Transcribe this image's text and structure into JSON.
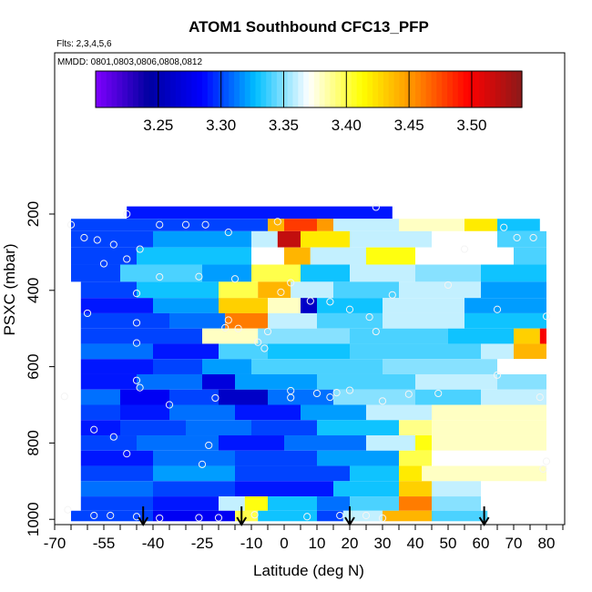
{
  "chart_data": {
    "type": "heatmap",
    "title": "ATOM1 Southbound CFC13_PFP",
    "subtitle_lines": [
      "Flts: 2,3,4,5,6",
      "MMDD: 0801,0803,0806,0808,0812"
    ],
    "xlabel": "Latitude (deg N)",
    "ylabel": "PSXC (mbar)",
    "xlim": [
      -70,
      85
    ],
    "ylim": [
      1010,
      0
    ],
    "x_ticks": [
      -70,
      -55,
      -40,
      -25,
      -10,
      0,
      10,
      20,
      30,
      40,
      50,
      60,
      70,
      80
    ],
    "y_ticks": [
      200,
      400,
      600,
      800,
      1000
    ],
    "colorbar": {
      "min": 3.2,
      "max": 3.54,
      "ticks": [
        3.25,
        3.3,
        3.35,
        3.4,
        3.45,
        3.5
      ],
      "tick_labels": [
        "3.25",
        "3.30",
        "3.35",
        "3.40",
        "3.45",
        "3.50"
      ],
      "colors": [
        "#7F00FF",
        "#0000A0",
        "#0000FF",
        "#00BFFF",
        "#FFFFFF",
        "#FFFF00",
        "#FF8C00",
        "#FF0000",
        "#8B1A1A"
      ]
    },
    "rows": [
      {
        "pressure": 200,
        "segments": [
          [
            -48,
            33,
            3.29
          ]
        ]
      },
      {
        "pressure": 225,
        "segments": [
          [
            -65,
            -5,
            3.3
          ],
          [
            -5,
            0,
            3.44
          ],
          [
            0,
            10,
            3.48
          ],
          [
            10,
            15,
            3.45
          ],
          [
            15,
            35,
            3.36
          ],
          [
            35,
            55,
            3.38
          ],
          [
            55,
            65,
            3.42
          ],
          [
            65,
            78,
            3.33
          ]
        ]
      },
      {
        "pressure": 265,
        "segments": [
          [
            -65,
            -40,
            3.3
          ],
          [
            -40,
            -10,
            3.32
          ],
          [
            -10,
            -2,
            3.36
          ],
          [
            -2,
            5,
            3.52
          ],
          [
            5,
            20,
            3.42
          ],
          [
            20,
            45,
            3.36
          ],
          [
            45,
            65,
            3.37
          ],
          [
            65,
            80,
            3.34
          ]
        ]
      },
      {
        "pressure": 310,
        "segments": [
          [
            -65,
            -45,
            3.3
          ],
          [
            -45,
            -10,
            3.33
          ],
          [
            -10,
            0,
            3.37
          ],
          [
            0,
            8,
            3.44
          ],
          [
            8,
            25,
            3.36
          ],
          [
            25,
            40,
            3.41
          ],
          [
            40,
            70,
            3.37
          ],
          [
            70,
            80,
            3.34
          ]
        ]
      },
      {
        "pressure": 355,
        "segments": [
          [
            -65,
            -50,
            3.3
          ],
          [
            -50,
            -25,
            3.34
          ],
          [
            -25,
            -10,
            3.32
          ],
          [
            -10,
            5,
            3.4
          ],
          [
            5,
            20,
            3.33
          ],
          [
            20,
            40,
            3.36
          ],
          [
            40,
            60,
            3.35
          ],
          [
            60,
            80,
            3.33
          ]
        ]
      },
      {
        "pressure": 400,
        "segments": [
          [
            -62,
            -45,
            3.3
          ],
          [
            -45,
            -20,
            3.33
          ],
          [
            -20,
            -8,
            3.4
          ],
          [
            -8,
            2,
            3.44
          ],
          [
            2,
            15,
            3.36
          ],
          [
            15,
            35,
            3.34
          ],
          [
            35,
            60,
            3.36
          ],
          [
            60,
            80,
            3.32
          ]
        ]
      },
      {
        "pressure": 440,
        "segments": [
          [
            -62,
            -40,
            3.29
          ],
          [
            -40,
            -20,
            3.32
          ],
          [
            -20,
            -5,
            3.43
          ],
          [
            -5,
            5,
            3.38
          ],
          [
            5,
            10,
            3.26
          ],
          [
            10,
            30,
            3.33
          ],
          [
            30,
            55,
            3.36
          ],
          [
            55,
            80,
            3.32
          ]
        ]
      },
      {
        "pressure": 480,
        "segments": [
          [
            -62,
            -35,
            3.3
          ],
          [
            -35,
            -18,
            3.31
          ],
          [
            -18,
            -5,
            3.46
          ],
          [
            -5,
            10,
            3.36
          ],
          [
            10,
            30,
            3.34
          ],
          [
            30,
            55,
            3.36
          ],
          [
            55,
            80,
            3.33
          ]
        ]
      },
      {
        "pressure": 520,
        "segments": [
          [
            -62,
            -25,
            3.3
          ],
          [
            -25,
            -8,
            3.38
          ],
          [
            -8,
            20,
            3.35
          ],
          [
            20,
            50,
            3.34
          ],
          [
            50,
            70,
            3.33
          ],
          [
            70,
            78,
            3.43
          ],
          [
            78,
            80,
            3.5
          ]
        ]
      },
      {
        "pressure": 560,
        "segments": [
          [
            -62,
            -40,
            3.31
          ],
          [
            -40,
            -20,
            3.29
          ],
          [
            -20,
            -5,
            3.34
          ],
          [
            -5,
            20,
            3.33
          ],
          [
            20,
            60,
            3.34
          ],
          [
            60,
            70,
            3.36
          ],
          [
            70,
            80,
            3.44
          ]
        ]
      },
      {
        "pressure": 600,
        "segments": [
          [
            -62,
            -40,
            3.29
          ],
          [
            -40,
            -25,
            3.3
          ],
          [
            -25,
            -10,
            3.32
          ],
          [
            -10,
            30,
            3.34
          ],
          [
            30,
            65,
            3.35
          ],
          [
            65,
            80,
            3.37
          ]
        ]
      },
      {
        "pressure": 640,
        "segments": [
          [
            -62,
            -45,
            3.29
          ],
          [
            -45,
            -25,
            3.31
          ],
          [
            -25,
            -15,
            3.27
          ],
          [
            -15,
            10,
            3.32
          ],
          [
            10,
            40,
            3.34
          ],
          [
            40,
            65,
            3.36
          ],
          [
            65,
            80,
            3.35
          ]
        ]
      },
      {
        "pressure": 680,
        "segments": [
          [
            -62,
            -50,
            3.31
          ],
          [
            -50,
            -35,
            3.28
          ],
          [
            -35,
            -20,
            3.3
          ],
          [
            -20,
            -5,
            3.26
          ],
          [
            -5,
            15,
            3.31
          ],
          [
            15,
            40,
            3.35
          ],
          [
            40,
            60,
            3.34
          ],
          [
            60,
            80,
            3.36
          ]
        ]
      },
      {
        "pressure": 720,
        "segments": [
          [
            -62,
            -50,
            3.3
          ],
          [
            -50,
            -35,
            3.29
          ],
          [
            -35,
            -15,
            3.31
          ],
          [
            -15,
            5,
            3.29
          ],
          [
            5,
            25,
            3.32
          ],
          [
            25,
            45,
            3.36
          ],
          [
            45,
            80,
            3.38
          ]
        ]
      },
      {
        "pressure": 760,
        "segments": [
          [
            -62,
            -50,
            3.29
          ],
          [
            -50,
            -30,
            3.3
          ],
          [
            -30,
            -10,
            3.31
          ],
          [
            -10,
            10,
            3.3
          ],
          [
            10,
            35,
            3.33
          ],
          [
            35,
            45,
            3.39
          ],
          [
            45,
            80,
            3.38
          ]
        ]
      },
      {
        "pressure": 800,
        "segments": [
          [
            -62,
            -45,
            3.3
          ],
          [
            -45,
            -20,
            3.31
          ],
          [
            -20,
            0,
            3.29
          ],
          [
            0,
            25,
            3.31
          ],
          [
            25,
            40,
            3.36
          ],
          [
            40,
            45,
            3.41
          ],
          [
            45,
            80,
            3.38
          ]
        ]
      },
      {
        "pressure": 840,
        "segments": [
          [
            -62,
            -40,
            3.29
          ],
          [
            -40,
            -15,
            3.31
          ],
          [
            -15,
            10,
            3.3
          ],
          [
            10,
            35,
            3.32
          ],
          [
            35,
            45,
            3.4
          ],
          [
            45,
            80,
            3.37
          ]
        ]
      },
      {
        "pressure": 880,
        "segments": [
          [
            -62,
            -40,
            3.3
          ],
          [
            -40,
            -15,
            3.32
          ],
          [
            -15,
            20,
            3.3
          ],
          [
            20,
            35,
            3.33
          ],
          [
            35,
            42,
            3.42
          ],
          [
            42,
            80,
            3.38
          ]
        ]
      },
      {
        "pressure": 920,
        "segments": [
          [
            -62,
            -40,
            3.31
          ],
          [
            -40,
            -15,
            3.3
          ],
          [
            -15,
            15,
            3.29
          ],
          [
            15,
            35,
            3.33
          ],
          [
            35,
            45,
            3.43
          ],
          [
            45,
            60,
            3.36
          ],
          [
            60,
            72,
            3.37
          ]
        ]
      },
      {
        "pressure": 960,
        "segments": [
          [
            -62,
            -40,
            3.3
          ],
          [
            -40,
            -20,
            3.29
          ],
          [
            -20,
            -12,
            3.36
          ],
          [
            -12,
            -5,
            3.41
          ],
          [
            -5,
            10,
            3.33
          ],
          [
            10,
            20,
            3.31
          ],
          [
            20,
            35,
            3.34
          ],
          [
            35,
            45,
            3.46
          ],
          [
            45,
            60,
            3.35
          ]
        ]
      },
      {
        "pressure": 995,
        "segments": [
          [
            -65,
            -40,
            3.3
          ],
          [
            -40,
            -15,
            3.28
          ],
          [
            -15,
            -8,
            3.4
          ],
          [
            -8,
            10,
            3.33
          ],
          [
            10,
            18,
            3.3
          ],
          [
            18,
            30,
            3.36
          ],
          [
            30,
            45,
            3.44
          ],
          [
            45,
            62,
            3.34
          ]
        ]
      }
    ],
    "points": [
      [
        -48,
        200
      ],
      [
        -65,
        228
      ],
      [
        -38,
        228
      ],
      [
        -30,
        228
      ],
      [
        -24,
        228
      ],
      [
        -2,
        220
      ],
      [
        28,
        182
      ],
      [
        -17,
        248
      ],
      [
        -61,
        262
      ],
      [
        -57,
        268
      ],
      [
        -52,
        280
      ],
      [
        -44,
        292
      ],
      [
        67,
        235
      ],
      [
        71,
        262
      ],
      [
        76,
        262
      ],
      [
        55,
        292
      ],
      [
        -48,
        318
      ],
      [
        -38,
        365
      ],
      [
        -55,
        330
      ],
      [
        -26,
        364
      ],
      [
        -15,
        370
      ],
      [
        2,
        380
      ],
      [
        -1,
        405
      ],
      [
        8,
        428
      ],
      [
        33,
        412
      ],
      [
        50,
        386
      ],
      [
        65,
        450
      ],
      [
        80,
        468
      ],
      [
        -45,
        408
      ],
      [
        -60,
        460
      ],
      [
        -45,
        485
      ],
      [
        -45,
        538
      ],
      [
        -18,
        498
      ],
      [
        -5,
        508
      ],
      [
        14,
        430
      ],
      [
        20,
        450
      ],
      [
        26,
        470
      ],
      [
        28,
        508
      ],
      [
        -45,
        636
      ],
      [
        -44,
        655
      ],
      [
        -21,
        682
      ],
      [
        2,
        663
      ],
      [
        2,
        681
      ],
      [
        10,
        670
      ],
      [
        14,
        680
      ],
      [
        16,
        668
      ],
      [
        20,
        662
      ],
      [
        30,
        690
      ],
      [
        38,
        672
      ],
      [
        47,
        670
      ],
      [
        65,
        622
      ],
      [
        78,
        680
      ],
      [
        -58,
        765
      ],
      [
        -52,
        784
      ],
      [
        -48,
        828
      ],
      [
        -35,
        700
      ],
      [
        -25,
        856
      ],
      [
        -23,
        806
      ],
      [
        -67,
        678
      ],
      [
        80,
        848
      ],
      [
        79,
        868
      ],
      [
        -17,
        478
      ],
      [
        -14,
        500
      ],
      [
        -8,
        536
      ],
      [
        -6,
        552
      ],
      [
        -66,
        975
      ],
      [
        -58,
        990
      ],
      [
        -53,
        990
      ],
      [
        -45,
        993
      ],
      [
        -38,
        997
      ],
      [
        -26,
        996
      ],
      [
        -20,
        996
      ],
      [
        -9,
        988
      ],
      [
        7,
        993
      ],
      [
        17,
        990
      ],
      [
        25,
        990
      ],
      [
        30,
        997
      ]
    ],
    "arrows": [
      -43,
      -13,
      20,
      61
    ]
  }
}
